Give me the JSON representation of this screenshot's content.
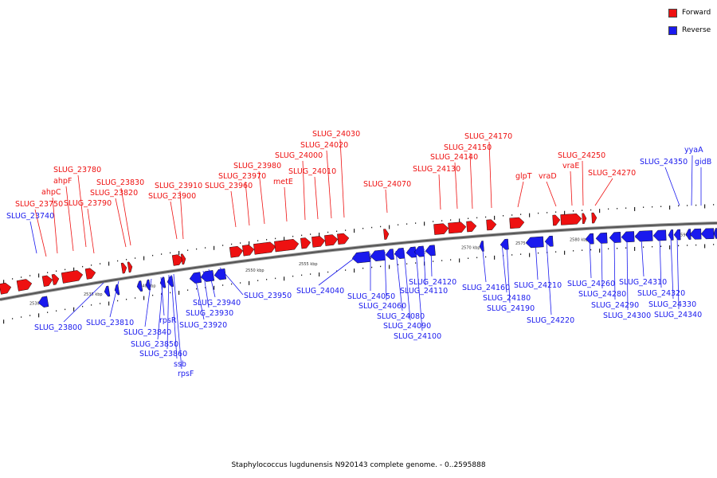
{
  "colors": {
    "forward": "#ee1111",
    "reverse": "#1a1aee",
    "backbone": "#777777",
    "scale_text": "#333333"
  },
  "legend": [
    {
      "label": "Forward",
      "color": "#ee1111"
    },
    {
      "label": "Reverse",
      "color": "#1a1aee"
    }
  ],
  "caption": "Staphylococcus lugdunensis N920143 complete genome. - 0..2595888",
  "scale_labels": [
    "2530 kbp",
    "2535 kbp",
    "2540 kbp",
    "2545 kbp",
    "2550 kbp",
    "2555 kbp",
    "2560 kbp",
    "2565 kbp",
    "2570 kbp",
    "2575 kbp",
    "2580 kbp",
    "2585 kbp",
    "2590 kbp"
  ],
  "forward_genes": [
    "SLUG_23750",
    "ahpC",
    "ahpF",
    "SLUG_23780",
    "SLUG_23790",
    "SLUG_23820",
    "SLUG_23830",
    "SLUG_23900",
    "SLUG_23910",
    "SLUG_23960",
    "SLUG_23970",
    "SLUG_23980",
    "metE",
    "SLUG_24000",
    "SLUG_24010",
    "SLUG_24020",
    "SLUG_24030",
    "SLUG_24070",
    "SLUG_24130",
    "SLUG_24140",
    "SLUG_24150",
    "SLUG_24170",
    "glpT",
    "vraD",
    "vraE",
    "SLUG_24250",
    "SLUG_24270"
  ],
  "reverse_genes": [
    "SLUG_23740",
    "SLUG_23800",
    "SLUG_23810",
    "SLUG_23840",
    "rpsR",
    "SLUG_23850",
    "SLUG_23860",
    "ssb",
    "rpsF",
    "SLUG_23920",
    "SLUG_23930",
    "SLUG_23940",
    "SLUG_23950",
    "SLUG_24040",
    "SLUG_24050",
    "SLUG_24060",
    "SLUG_24080",
    "SLUG_24090",
    "SLUG_24100",
    "SLUG_24110",
    "SLUG_24120",
    "SLUG_24160",
    "SLUG_24180",
    "SLUG_24190",
    "SLUG_24210",
    "SLUG_24220",
    "SLUG_24260",
    "SLUG_24280",
    "SLUG_24290",
    "SLUG_24300",
    "SLUG_24310",
    "SLUG_24320",
    "SLUG_24330",
    "SLUG_24340",
    "SLUG_24350",
    "yyaA",
    "gidB"
  ]
}
